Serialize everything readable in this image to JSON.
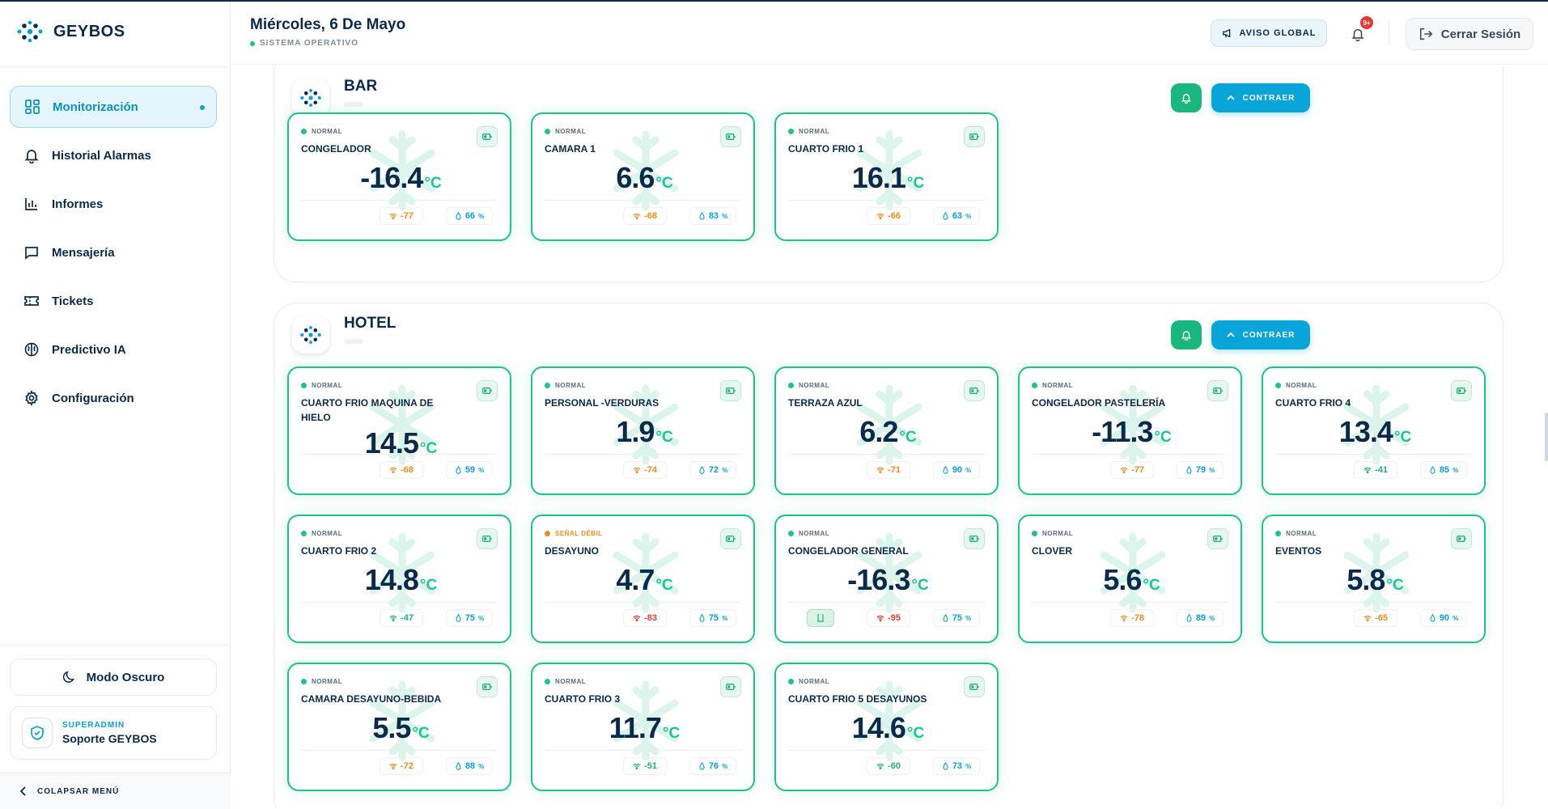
{
  "app": {
    "brand": "GEYBOS"
  },
  "header": {
    "date": "Miércoles, 6 De Mayo",
    "status": "SISTEMA OPERATIVO",
    "aviso_label": "AVISO GLOBAL",
    "notif_badge": "9+",
    "logout_label": "Cerrar Sesión"
  },
  "sidebar": {
    "items": [
      {
        "label": "Monitorización",
        "icon": "grid-icon",
        "active": true
      },
      {
        "label": "Historial Alarmas",
        "icon": "bell-icon"
      },
      {
        "label": "Informes",
        "icon": "bar-chart-icon"
      },
      {
        "label": "Mensajería",
        "icon": "message-icon"
      },
      {
        "label": "Tickets",
        "icon": "ticket-icon"
      },
      {
        "label": "Predictivo IA",
        "icon": "brain-icon"
      },
      {
        "label": "Configuración",
        "icon": "gear-icon"
      }
    ],
    "dark_mode_label": "Modo Oscuro",
    "user_role": "SUPERADMIN",
    "user_name": "Soporte GEYBOS",
    "collapse_label": "COLAPSAR MENÚ"
  },
  "groups": [
    {
      "title": "BAR",
      "contraer_label": "CONTRAER",
      "cards": [
        {
          "status": "NORMAL",
          "name": "CONGELADOR",
          "temp": "-16.4",
          "unit": "°C",
          "signal": "-77",
          "signal_level": "o",
          "humidity": "66",
          "pct": "%"
        },
        {
          "status": "NORMAL",
          "name": "CAMARA 1",
          "temp": "6.6",
          "unit": "°C",
          "signal": "-68",
          "signal_level": "o",
          "humidity": "83",
          "pct": "%"
        },
        {
          "status": "NORMAL",
          "name": "CUARTO FRIO 1",
          "temp": "16.1",
          "unit": "°C",
          "signal": "-66",
          "signal_level": "o",
          "humidity": "63",
          "pct": "%"
        }
      ]
    },
    {
      "title": "HOTEL",
      "contraer_label": "CONTRAER",
      "cards": [
        {
          "status": "NORMAL",
          "name": "CUARTO FRIO MAQUINA DE HIELO",
          "temp": "14.5",
          "unit": "°C",
          "signal": "-68",
          "signal_level": "o",
          "humidity": "59",
          "pct": "%"
        },
        {
          "status": "NORMAL",
          "name": "PERSONAL -VERDURAS",
          "temp": "1.9",
          "unit": "°C",
          "signal": "-74",
          "signal_level": "o",
          "humidity": "72",
          "pct": "%"
        },
        {
          "status": "NORMAL",
          "name": "TERRAZA AZUL",
          "temp": "6.2",
          "unit": "°C",
          "signal": "-71",
          "signal_level": "o",
          "humidity": "90",
          "pct": "%"
        },
        {
          "status": "NORMAL",
          "name": "CONGELADOR PASTELERÍA",
          "temp": "-11.3",
          "unit": "°C",
          "signal": "-77",
          "signal_level": "o",
          "humidity": "79",
          "pct": "%"
        },
        {
          "status": "NORMAL",
          "name": "CUARTO FRIO 4",
          "temp": "13.4",
          "unit": "°C",
          "signal": "-41",
          "signal_level": "g",
          "humidity": "85",
          "pct": "%"
        },
        {
          "status": "NORMAL",
          "name": "CUARTO FRIO 2",
          "temp": "14.8",
          "unit": "°C",
          "signal": "-47",
          "signal_level": "g",
          "humidity": "75",
          "pct": "%"
        },
        {
          "status": "SEÑAL DÉBIL",
          "weak": true,
          "name": "DESAYUNO",
          "temp": "4.7",
          "unit": "°C",
          "signal": "-83",
          "signal_level": "r",
          "humidity": "75",
          "pct": "%"
        },
        {
          "status": "NORMAL",
          "name": "CONGELADOR GENERAL",
          "temp": "-16.3",
          "unit": "°C",
          "signal": "-95",
          "signal_level": "r",
          "humidity": "75",
          "pct": "%",
          "door": true
        },
        {
          "status": "NORMAL",
          "name": "CLOVER",
          "temp": "5.6",
          "unit": "°C",
          "signal": "-78",
          "signal_level": "o",
          "humidity": "89",
          "pct": "%"
        },
        {
          "status": "NORMAL",
          "name": "EVENTOS",
          "temp": "5.8",
          "unit": "°C",
          "signal": "-65",
          "signal_level": "o",
          "humidity": "90",
          "pct": "%"
        },
        {
          "status": "NORMAL",
          "name": "CAMARA DESAYUNO-BEBIDA",
          "temp": "5.5",
          "unit": "°C",
          "signal": "-72",
          "signal_level": "o",
          "humidity": "88",
          "pct": "%"
        },
        {
          "status": "NORMAL",
          "name": "CUARTO FRIO 3",
          "temp": "11.7",
          "unit": "°C",
          "signal": "-51",
          "signal_level": "g",
          "humidity": "76",
          "pct": "%"
        },
        {
          "status": "NORMAL",
          "name": "CUARTO FRIO 5 DESAYUNOS",
          "temp": "14.6",
          "unit": "°C",
          "signal": "-60",
          "signal_level": "g",
          "humidity": "73",
          "pct": "%"
        }
      ]
    }
  ],
  "colors": {
    "accent": "#0aa5d8",
    "normal": "#22c08a",
    "weak": "#f08a24",
    "navy": "#0b2a4a"
  }
}
